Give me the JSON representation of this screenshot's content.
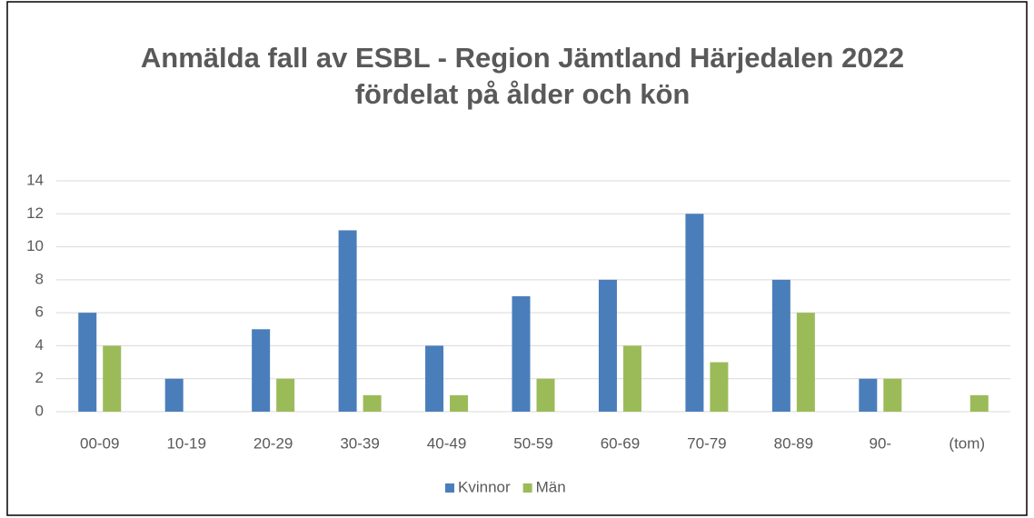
{
  "chart_data": {
    "type": "bar",
    "title": [
      "Anmälda fall av ESBL - Region Jämtland Härjedalen 2022",
      "fördelat på ålder och kön"
    ],
    "categories": [
      "00-09",
      "10-19",
      "20-29",
      "30-39",
      "40-49",
      "50-59",
      "60-69",
      "70-79",
      "80-89",
      "90-",
      "(tom)"
    ],
    "series": [
      {
        "name": "Kvinnor",
        "color": "#4a7ebb",
        "values": [
          6,
          2,
          5,
          11,
          4,
          7,
          8,
          12,
          8,
          2,
          null
        ]
      },
      {
        "name": "Män",
        "color": "#9bbb59",
        "values": [
          4,
          null,
          2,
          1,
          1,
          2,
          4,
          3,
          6,
          2,
          1
        ]
      }
    ],
    "ylim": [
      0,
      14
    ],
    "yticks": [
      0,
      2,
      4,
      6,
      8,
      10,
      12,
      14
    ],
    "grid": true,
    "legend": "bottom"
  }
}
